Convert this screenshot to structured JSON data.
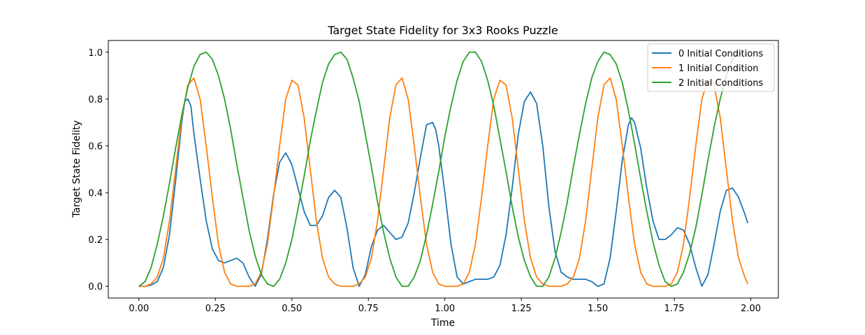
{
  "chart_data": {
    "type": "line",
    "title": "Target State Fidelity for 3x3 Rooks Puzzle",
    "xlabel": "Time",
    "ylabel": "Target State Fidelity",
    "xlim": [
      -0.1,
      2.09
    ],
    "ylim": [
      -0.05,
      1.05
    ],
    "xticks": [
      0.0,
      0.25,
      0.5,
      0.75,
      1.0,
      1.25,
      1.5,
      1.75,
      2.0
    ],
    "xtick_labels": [
      "0.00",
      "0.25",
      "0.50",
      "0.75",
      "1.00",
      "1.25",
      "1.50",
      "1.75",
      "2.00"
    ],
    "yticks": [
      0.0,
      0.2,
      0.4,
      0.6,
      0.8,
      1.0
    ],
    "ytick_labels": [
      "0.0",
      "0.2",
      "0.4",
      "0.6",
      "0.8",
      "1.0"
    ],
    "grid": false,
    "legend": "top-right",
    "series": [
      {
        "name": "0 Initial Conditions",
        "color": "#1f77b4",
        "x": [
          0.0,
          0.02,
          0.04,
          0.06,
          0.08,
          0.1,
          0.12,
          0.14,
          0.15,
          0.16,
          0.17,
          0.18,
          0.2,
          0.22,
          0.24,
          0.26,
          0.28,
          0.3,
          0.32,
          0.34,
          0.36,
          0.38,
          0.4,
          0.42,
          0.44,
          0.46,
          0.48,
          0.5,
          0.52,
          0.54,
          0.56,
          0.58,
          0.6,
          0.62,
          0.64,
          0.66,
          0.68,
          0.7,
          0.72,
          0.74,
          0.76,
          0.78,
          0.8,
          0.82,
          0.84,
          0.86,
          0.88,
          0.9,
          0.92,
          0.94,
          0.96,
          0.97,
          0.98,
          1.0,
          1.02,
          1.04,
          1.06,
          1.08,
          1.1,
          1.12,
          1.14,
          1.16,
          1.18,
          1.2,
          1.22,
          1.24,
          1.26,
          1.28,
          1.3,
          1.32,
          1.34,
          1.36,
          1.38,
          1.4,
          1.42,
          1.44,
          1.46,
          1.48,
          1.5,
          1.52,
          1.54,
          1.56,
          1.58,
          1.6,
          1.61,
          1.62,
          1.64,
          1.66,
          1.68,
          1.7,
          1.72,
          1.74,
          1.76,
          1.78,
          1.8,
          1.82,
          1.84,
          1.86,
          1.88,
          1.9,
          1.92,
          1.94,
          1.96,
          1.98,
          1.99
        ],
        "values": [
          0.0,
          0.0,
          0.005,
          0.02,
          0.08,
          0.22,
          0.45,
          0.7,
          0.79,
          0.8,
          0.77,
          0.65,
          0.46,
          0.28,
          0.16,
          0.11,
          0.1,
          0.11,
          0.12,
          0.1,
          0.04,
          0.0,
          0.05,
          0.2,
          0.39,
          0.53,
          0.57,
          0.52,
          0.42,
          0.32,
          0.26,
          0.26,
          0.3,
          0.38,
          0.41,
          0.38,
          0.25,
          0.08,
          0.0,
          0.05,
          0.17,
          0.24,
          0.26,
          0.23,
          0.2,
          0.21,
          0.27,
          0.4,
          0.55,
          0.69,
          0.7,
          0.67,
          0.6,
          0.4,
          0.18,
          0.04,
          0.01,
          0.02,
          0.03,
          0.03,
          0.03,
          0.04,
          0.09,
          0.22,
          0.42,
          0.65,
          0.79,
          0.83,
          0.78,
          0.6,
          0.34,
          0.15,
          0.06,
          0.04,
          0.03,
          0.03,
          0.03,
          0.02,
          0.0,
          0.01,
          0.12,
          0.32,
          0.54,
          0.69,
          0.72,
          0.7,
          0.59,
          0.42,
          0.28,
          0.2,
          0.2,
          0.22,
          0.25,
          0.24,
          0.18,
          0.08,
          0.0,
          0.05,
          0.18,
          0.32,
          0.41,
          0.42,
          0.38,
          0.31,
          0.27
        ]
      },
      {
        "name": "1 Initial Condition",
        "color": "#ff7f0e",
        "x": [
          0.0,
          0.02,
          0.04,
          0.06,
          0.08,
          0.1,
          0.12,
          0.14,
          0.16,
          0.18,
          0.2,
          0.22,
          0.24,
          0.26,
          0.28,
          0.3,
          0.32,
          0.34,
          0.36,
          0.38,
          0.4,
          0.42,
          0.44,
          0.46,
          0.48,
          0.5,
          0.52,
          0.54,
          0.56,
          0.58,
          0.6,
          0.62,
          0.64,
          0.66,
          0.68,
          0.7,
          0.72,
          0.74,
          0.76,
          0.78,
          0.8,
          0.82,
          0.84,
          0.86,
          0.88,
          0.9,
          0.92,
          0.94,
          0.96,
          0.98,
          1.0,
          1.02,
          1.04,
          1.06,
          1.08,
          1.1,
          1.12,
          1.14,
          1.16,
          1.18,
          1.2,
          1.22,
          1.24,
          1.26,
          1.28,
          1.3,
          1.32,
          1.34,
          1.36,
          1.38,
          1.4,
          1.42,
          1.44,
          1.46,
          1.48,
          1.5,
          1.52,
          1.54,
          1.56,
          1.58,
          1.6,
          1.62,
          1.64,
          1.66,
          1.68,
          1.7,
          1.72,
          1.74,
          1.76,
          1.78,
          1.8,
          1.82,
          1.84,
          1.86,
          1.88,
          1.9,
          1.92,
          1.94,
          1.96,
          1.98,
          1.99
        ],
        "values": [
          0.0,
          0.0,
          0.01,
          0.04,
          0.12,
          0.28,
          0.5,
          0.72,
          0.86,
          0.89,
          0.8,
          0.6,
          0.38,
          0.18,
          0.06,
          0.01,
          0.0,
          0.0,
          0.0,
          0.01,
          0.06,
          0.18,
          0.38,
          0.6,
          0.8,
          0.88,
          0.86,
          0.72,
          0.5,
          0.28,
          0.12,
          0.04,
          0.01,
          0.0,
          0.0,
          0.0,
          0.01,
          0.04,
          0.12,
          0.28,
          0.5,
          0.72,
          0.86,
          0.89,
          0.8,
          0.6,
          0.38,
          0.18,
          0.06,
          0.01,
          0.0,
          0.0,
          0.0,
          0.01,
          0.06,
          0.18,
          0.38,
          0.6,
          0.8,
          0.88,
          0.86,
          0.72,
          0.5,
          0.28,
          0.12,
          0.04,
          0.01,
          0.0,
          0.0,
          0.0,
          0.01,
          0.04,
          0.12,
          0.28,
          0.5,
          0.72,
          0.86,
          0.89,
          0.8,
          0.6,
          0.38,
          0.18,
          0.06,
          0.01,
          0.0,
          0.0,
          0.0,
          0.01,
          0.06,
          0.18,
          0.38,
          0.6,
          0.8,
          0.88,
          0.86,
          0.72,
          0.5,
          0.28,
          0.12,
          0.04,
          0.01
        ]
      },
      {
        "name": "2 Initial Conditions",
        "color": "#2ca02c",
        "x": [
          0.0,
          0.02,
          0.04,
          0.06,
          0.08,
          0.1,
          0.12,
          0.14,
          0.16,
          0.18,
          0.2,
          0.22,
          0.24,
          0.26,
          0.28,
          0.3,
          0.32,
          0.34,
          0.36,
          0.38,
          0.4,
          0.42,
          0.44,
          0.46,
          0.48,
          0.5,
          0.52,
          0.54,
          0.56,
          0.58,
          0.6,
          0.62,
          0.64,
          0.66,
          0.68,
          0.7,
          0.72,
          0.74,
          0.76,
          0.78,
          0.8,
          0.82,
          0.84,
          0.86,
          0.88,
          0.9,
          0.92,
          0.94,
          0.96,
          0.98,
          1.0,
          1.02,
          1.04,
          1.06,
          1.08,
          1.1,
          1.12,
          1.14,
          1.16,
          1.18,
          1.2,
          1.22,
          1.24,
          1.26,
          1.28,
          1.3,
          1.32,
          1.34,
          1.36,
          1.38,
          1.4,
          1.42,
          1.44,
          1.46,
          1.48,
          1.5,
          1.52,
          1.54,
          1.56,
          1.58,
          1.6,
          1.62,
          1.64,
          1.66,
          1.68,
          1.7,
          1.72,
          1.74,
          1.76,
          1.78,
          1.8,
          1.82,
          1.84,
          1.86,
          1.88,
          1.9,
          1.92,
          1.94,
          1.96,
          1.98,
          1.99
        ],
        "values": [
          0.0,
          0.02,
          0.08,
          0.18,
          0.3,
          0.44,
          0.59,
          0.73,
          0.85,
          0.94,
          0.99,
          1.0,
          0.97,
          0.9,
          0.8,
          0.67,
          0.52,
          0.38,
          0.24,
          0.13,
          0.05,
          0.01,
          0.0,
          0.03,
          0.1,
          0.2,
          0.33,
          0.47,
          0.62,
          0.75,
          0.87,
          0.95,
          0.99,
          1.0,
          0.97,
          0.89,
          0.79,
          0.65,
          0.51,
          0.36,
          0.23,
          0.12,
          0.04,
          0.0,
          0.0,
          0.04,
          0.11,
          0.22,
          0.35,
          0.49,
          0.64,
          0.77,
          0.88,
          0.96,
          1.0,
          1.0,
          0.96,
          0.88,
          0.77,
          0.63,
          0.49,
          0.34,
          0.21,
          0.11,
          0.04,
          0.0,
          0.0,
          0.04,
          0.12,
          0.23,
          0.36,
          0.51,
          0.65,
          0.78,
          0.89,
          0.96,
          1.0,
          0.99,
          0.95,
          0.87,
          0.75,
          0.61,
          0.46,
          0.32,
          0.19,
          0.09,
          0.02,
          0.0,
          0.01,
          0.06,
          0.14,
          0.25,
          0.39,
          0.54,
          0.68,
          0.8,
          0.9,
          0.97,
          1.0,
          0.99,
          0.98
        ]
      }
    ]
  }
}
